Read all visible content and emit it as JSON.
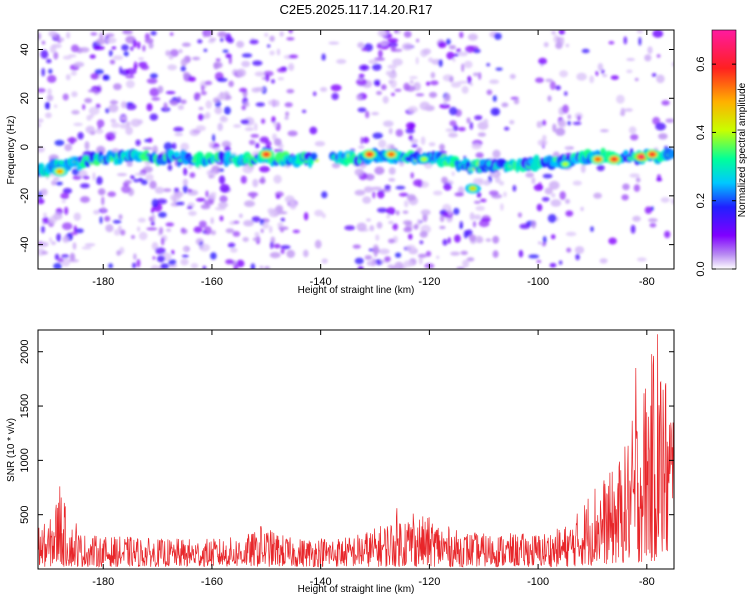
{
  "title": "C2E5.2025.117.14.20.R17",
  "colors": {
    "snr_line": "#e8262a",
    "frame": "#000000"
  },
  "chart_data": [
    {
      "type": "heatmap",
      "xlabel": "Height of straight line (km)",
      "ylabel": "Frequency (Hz)",
      "xlim": [
        -192,
        -75
      ],
      "ylim": [
        -50,
        48
      ],
      "x_ticks": [
        -180,
        -160,
        -140,
        -120,
        -100,
        -80
      ],
      "y_ticks": [
        40,
        20,
        0,
        -20,
        -40
      ],
      "colorbar": {
        "label": "Normalized spectral amplitude",
        "range": [
          0,
          0.7
        ],
        "ticks": [
          0,
          0.2,
          0.4,
          0.6
        ],
        "tick_labels": [
          "0.0",
          "0.2",
          "0.4",
          "0.6"
        ],
        "colormap": [
          "#ffffff",
          "#b98cf2",
          "#8000ff",
          "#2020ff",
          "#00c8ff",
          "#00ff9a",
          "#c8ff00",
          "#ffb000",
          "#ff2020",
          "#ff1aa0"
        ]
      },
      "band": {
        "description_note": "",
        "centerline": [
          [
            -192,
            -10
          ],
          [
            -185,
            -6
          ],
          [
            -175,
            -4
          ],
          [
            -160,
            -5
          ],
          [
            -150,
            -5
          ],
          [
            -140,
            -5
          ],
          [
            -130,
            -4
          ],
          [
            -120,
            -4
          ],
          [
            -112,
            -8
          ],
          [
            -100,
            -7
          ],
          [
            -90,
            -4
          ],
          [
            -80,
            -4
          ],
          [
            -76,
            -3
          ]
        ],
        "hotspots": [
          {
            "x": -188,
            "y": -10,
            "v": 0.5
          },
          {
            "x": -150,
            "y": -3,
            "v": 0.6
          },
          {
            "x": -131,
            "y": -3,
            "v": 0.6
          },
          {
            "x": -127,
            "y": -3,
            "v": 0.55
          },
          {
            "x": -121,
            "y": -5,
            "v": 0.4
          },
          {
            "x": -112,
            "y": -17,
            "v": 0.45
          },
          {
            "x": -95,
            "y": -7,
            "v": 0.4
          },
          {
            "x": -89,
            "y": -5,
            "v": 0.55
          },
          {
            "x": -86,
            "y": -5,
            "v": 0.6
          },
          {
            "x": -81,
            "y": -4,
            "v": 0.65
          },
          {
            "x": -79,
            "y": -3,
            "v": 0.6
          }
        ]
      }
    },
    {
      "type": "line",
      "xlabel": "Height of straight line (km)",
      "ylabel": "SNR (10 * v/v)",
      "xlim": [
        -192,
        -75
      ],
      "ylim": [
        0,
        2200
      ],
      "x_ticks": [
        -180,
        -160,
        -140,
        -120,
        -100,
        -80
      ],
      "y_ticks": [
        500,
        1000,
        1500,
        2000
      ],
      "series": [
        {
          "envelope": {
            "x": [
              -192,
              -190,
              -188,
              -186,
              -184,
              -180,
              -175,
              -170,
              -165,
              -160,
              -155,
              -150,
              -145,
              -140,
              -135,
              -130,
              -125,
              -120,
              -115,
              -110,
              -105,
              -100,
              -96,
              -94,
              -92,
              -90,
              -88,
              -86,
              -84,
              -82,
              -80,
              -78,
              -76,
              -75
            ],
            "low": [
              20,
              20,
              20,
              20,
              20,
              20,
              20,
              20,
              20,
              20,
              20,
              20,
              20,
              20,
              20,
              20,
              20,
              20,
              20,
              20,
              20,
              20,
              20,
              20,
              30,
              30,
              40,
              40,
              50,
              50,
              60,
              60,
              60,
              60
            ],
            "high": [
              420,
              420,
              760,
              420,
              330,
              300,
              300,
              280,
              280,
              280,
              300,
              380,
              280,
              300,
              300,
              380,
              520,
              480,
              360,
              330,
              330,
              330,
              380,
              440,
              580,
              800,
              850,
              920,
              1150,
              1500,
              1850,
              2150,
              1750,
              1600
            ]
          },
          "spikes": [
            {
              "x": -188,
              "y": 760
            },
            {
              "x": -185,
              "y": 420
            },
            {
              "x": -151,
              "y": 390
            },
            {
              "x": -126,
              "y": 560
            },
            {
              "x": -123,
              "y": 510
            },
            {
              "x": -82,
              "y": 1850
            },
            {
              "x": -78,
              "y": 2160
            },
            {
              "x": -77,
              "y": 1650
            }
          ]
        }
      ]
    }
  ]
}
